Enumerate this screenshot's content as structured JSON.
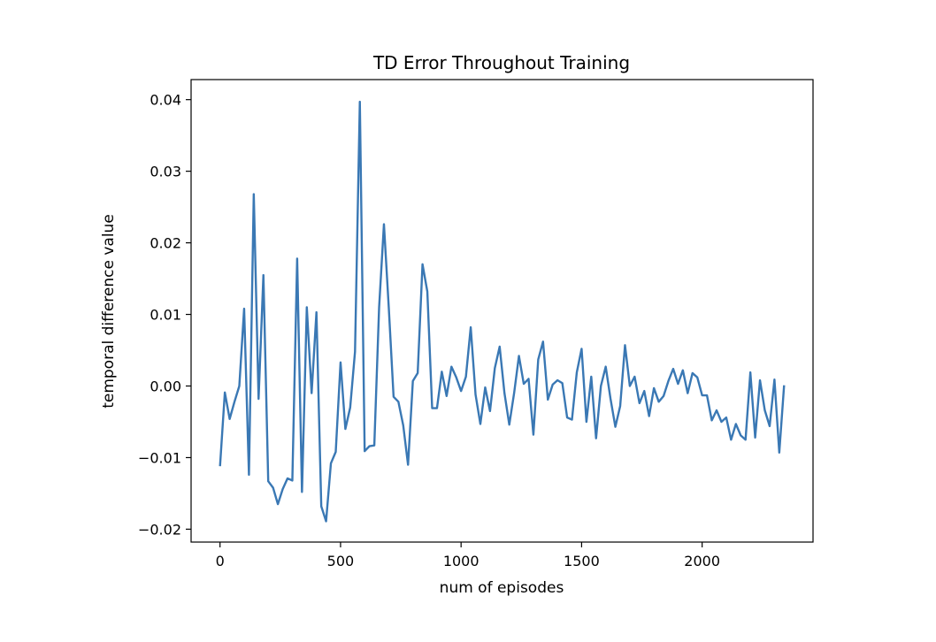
{
  "chart_data": {
    "type": "line",
    "title": "TD Error Throughout Training",
    "xlabel": "num of episodes",
    "ylabel": "temporal difference value",
    "xlim": [
      -120,
      2460
    ],
    "ylim": [
      -0.0218,
      0.0428
    ],
    "xticks": [
      0,
      500,
      1000,
      1500,
      2000
    ],
    "xtick_labels": [
      "0",
      "500",
      "1000",
      "1500",
      "2000"
    ],
    "yticks": [
      -0.02,
      -0.01,
      0.0,
      0.01,
      0.02,
      0.03,
      0.04
    ],
    "ytick_labels": [
      "−0.02",
      "−0.01",
      "0.00",
      "0.01",
      "0.02",
      "0.03",
      "0.04"
    ],
    "grid": false,
    "legend": "none",
    "series": [
      {
        "color": "#3a78b4",
        "x": [
          0,
          20,
          40,
          60,
          80,
          100,
          120,
          140,
          160,
          180,
          200,
          220,
          240,
          260,
          280,
          300,
          320,
          340,
          360,
          380,
          400,
          420,
          440,
          460,
          480,
          500,
          520,
          540,
          560,
          580,
          600,
          620,
          640,
          660,
          680,
          700,
          720,
          740,
          760,
          780,
          800,
          820,
          840,
          860,
          880,
          900,
          920,
          940,
          960,
          980,
          1000,
          1020,
          1040,
          1060,
          1080,
          1100,
          1120,
          1140,
          1160,
          1180,
          1200,
          1220,
          1240,
          1260,
          1280,
          1300,
          1320,
          1340,
          1360,
          1380,
          1400,
          1420,
          1440,
          1460,
          1480,
          1500,
          1520,
          1540,
          1560,
          1580,
          1600,
          1620,
          1640,
          1660,
          1680,
          1700,
          1720,
          1740,
          1760,
          1780,
          1800,
          1820,
          1840,
          1860,
          1880,
          1900,
          1920,
          1940,
          1960,
          1980,
          2000,
          2020,
          2040,
          2060,
          2080,
          2100,
          2120,
          2140,
          2160,
          2180,
          2200,
          2220,
          2240,
          2260,
          2280,
          2300,
          2320,
          2340
        ],
        "y": [
          -0.0112,
          -0.0009,
          -0.0046,
          -0.0022,
          0.0,
          0.0108,
          -0.0124,
          0.0268,
          -0.0018,
          0.0155,
          -0.0133,
          -0.0142,
          -0.0165,
          -0.0144,
          -0.0129,
          -0.0132,
          0.0178,
          -0.0148,
          0.011,
          -0.001,
          0.0103,
          -0.0168,
          -0.0189,
          -0.0108,
          -0.0092,
          0.0033,
          -0.006,
          -0.003,
          0.0048,
          0.0397,
          -0.0091,
          -0.0084,
          -0.0083,
          0.011,
          0.0226,
          0.011,
          -0.0015,
          -0.0022,
          -0.0055,
          -0.011,
          0.0007,
          0.0018,
          0.017,
          0.0132,
          -0.0031,
          -0.0031,
          0.002,
          -0.0014,
          0.0027,
          0.0012,
          -0.0007,
          0.0013,
          0.0082,
          -0.0012,
          -0.0053,
          -0.0002,
          -0.0035,
          0.0025,
          0.0055,
          -0.001,
          -0.0054,
          -0.001,
          0.0042,
          0.0003,
          0.001,
          -0.0068,
          0.0037,
          0.0062,
          -0.0019,
          0.0002,
          0.0008,
          0.0004,
          -0.0044,
          -0.0047,
          0.0019,
          0.0052,
          -0.005,
          0.0013,
          -0.0073,
          0.0,
          0.0027,
          -0.0018,
          -0.0057,
          -0.0028,
          0.0057,
          0.0,
          0.0013,
          -0.0024,
          -0.0007,
          -0.0042,
          -0.0003,
          -0.0022,
          -0.0014,
          0.0007,
          0.0024,
          0.0003,
          0.0022,
          -0.001,
          0.0018,
          0.0012,
          -0.0013,
          -0.0013,
          -0.0048,
          -0.0034,
          -0.005,
          -0.0044,
          -0.0075,
          -0.0053,
          -0.0069,
          -0.0075,
          0.0019,
          -0.0072,
          0.0008,
          -0.0034,
          -0.0056,
          0.0009,
          -0.0093,
          0.0001
        ]
      }
    ]
  }
}
